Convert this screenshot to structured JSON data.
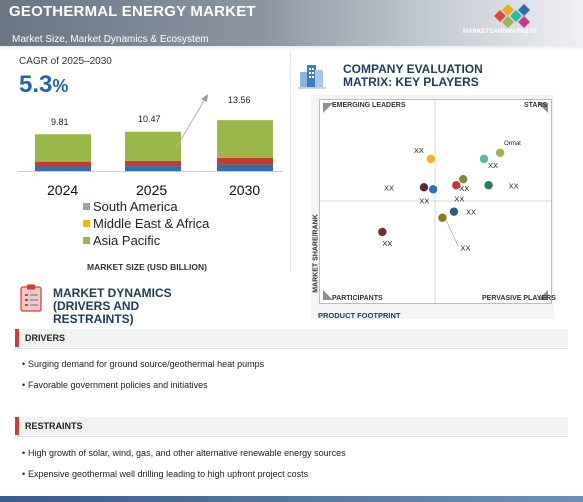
{
  "header": {
    "title": "GEOTHERMAL ENERGY MARKET",
    "subtitle": "Market Size, Market Dynamics & Ecosystem",
    "logo_text": "MARKETSANDMARKETS"
  },
  "cagr": {
    "label": "CAGR of 2025–2030",
    "value": "5.3",
    "unit": "%"
  },
  "chart_data": {
    "type": "bar",
    "stacked": true,
    "categories": [
      "2024",
      "2025",
      "2030"
    ],
    "totals": [
      "9.81",
      "10.47",
      "13.56"
    ],
    "series": [
      {
        "name": "South America",
        "color": "#2f6db2",
        "values": [
          1.2,
          1.3,
          1.7
        ]
      },
      {
        "name": "Middle East & Africa",
        "color": "#c73a2f",
        "values": [
          1.3,
          1.4,
          1.8
        ]
      },
      {
        "name": "Asia Pacific",
        "color": "#9ab84a",
        "values": [
          7.31,
          7.77,
          10.06
        ]
      }
    ],
    "ylabel": "MARKET SIZE (USD BILLION)",
    "legend_extra_colors": [
      "#9aa3ad",
      "#f2b800"
    ]
  },
  "matrix": {
    "title_lines": [
      "COMPANY EVALUATION",
      "MATRIX: KEY PLAYERS"
    ],
    "corners": {
      "top_left": "EMERGING LEADERS",
      "top_right": "STARS",
      "bottom_left": "PARTICIPANTS",
      "bottom_right": "PERVASIVE PLAYERS"
    },
    "y_axis_label": "MARKET SHARE/RANK",
    "x_axis_label": "PRODUCT FOOTPRINT",
    "players": [
      {
        "label": "Ormat",
        "fx": 0.78,
        "fy": 0.26,
        "color": "#9ab84a"
      },
      {
        "label": "XX",
        "fx": 0.71,
        "fy": 0.29,
        "color": "#58b8a8"
      },
      {
        "label": "XX",
        "fx": 0.48,
        "fy": 0.29,
        "color": "#f2b800"
      },
      {
        "label": "XX",
        "fx": 0.62,
        "fy": 0.39,
        "color": "#7a8f3a"
      },
      {
        "label": "XX",
        "fx": 0.59,
        "fy": 0.42,
        "color": "#c73a2f"
      },
      {
        "label": "XX",
        "fx": 0.73,
        "fy": 0.42,
        "color": "#2e7b63"
      },
      {
        "label": "XX",
        "fx": 0.45,
        "fy": 0.43,
        "color": "#5a2a3a"
      },
      {
        "label": "XX",
        "fx": 0.49,
        "fy": 0.44,
        "color": "#2f6db2"
      },
      {
        "label": "XX",
        "fx": 0.58,
        "fy": 0.55,
        "color": "#2c5e8c"
      },
      {
        "label": "XX",
        "fx": 0.53,
        "fy": 0.58,
        "color": "#8a7a1a"
      },
      {
        "label": "XX",
        "fx": 0.27,
        "fy": 0.65,
        "color": "#7a2a2a"
      }
    ]
  },
  "dynamics": {
    "title_lines": [
      "MARKET DYNAMICS",
      "(DRIVERS AND",
      "RESTRAINTS)"
    ],
    "drivers_label": "DRIVERS",
    "drivers": [
      "Surging demand for ground source/geothermal heat pumps",
      "Favorable government policies and initiatives"
    ],
    "restraints_label": "RESTRAINTS",
    "restraints": [
      "High growth of solar, wind, gas, and other alternative renewable energy sources",
      "Expensive geothermal well drilling leading to high upfront project costs"
    ]
  }
}
